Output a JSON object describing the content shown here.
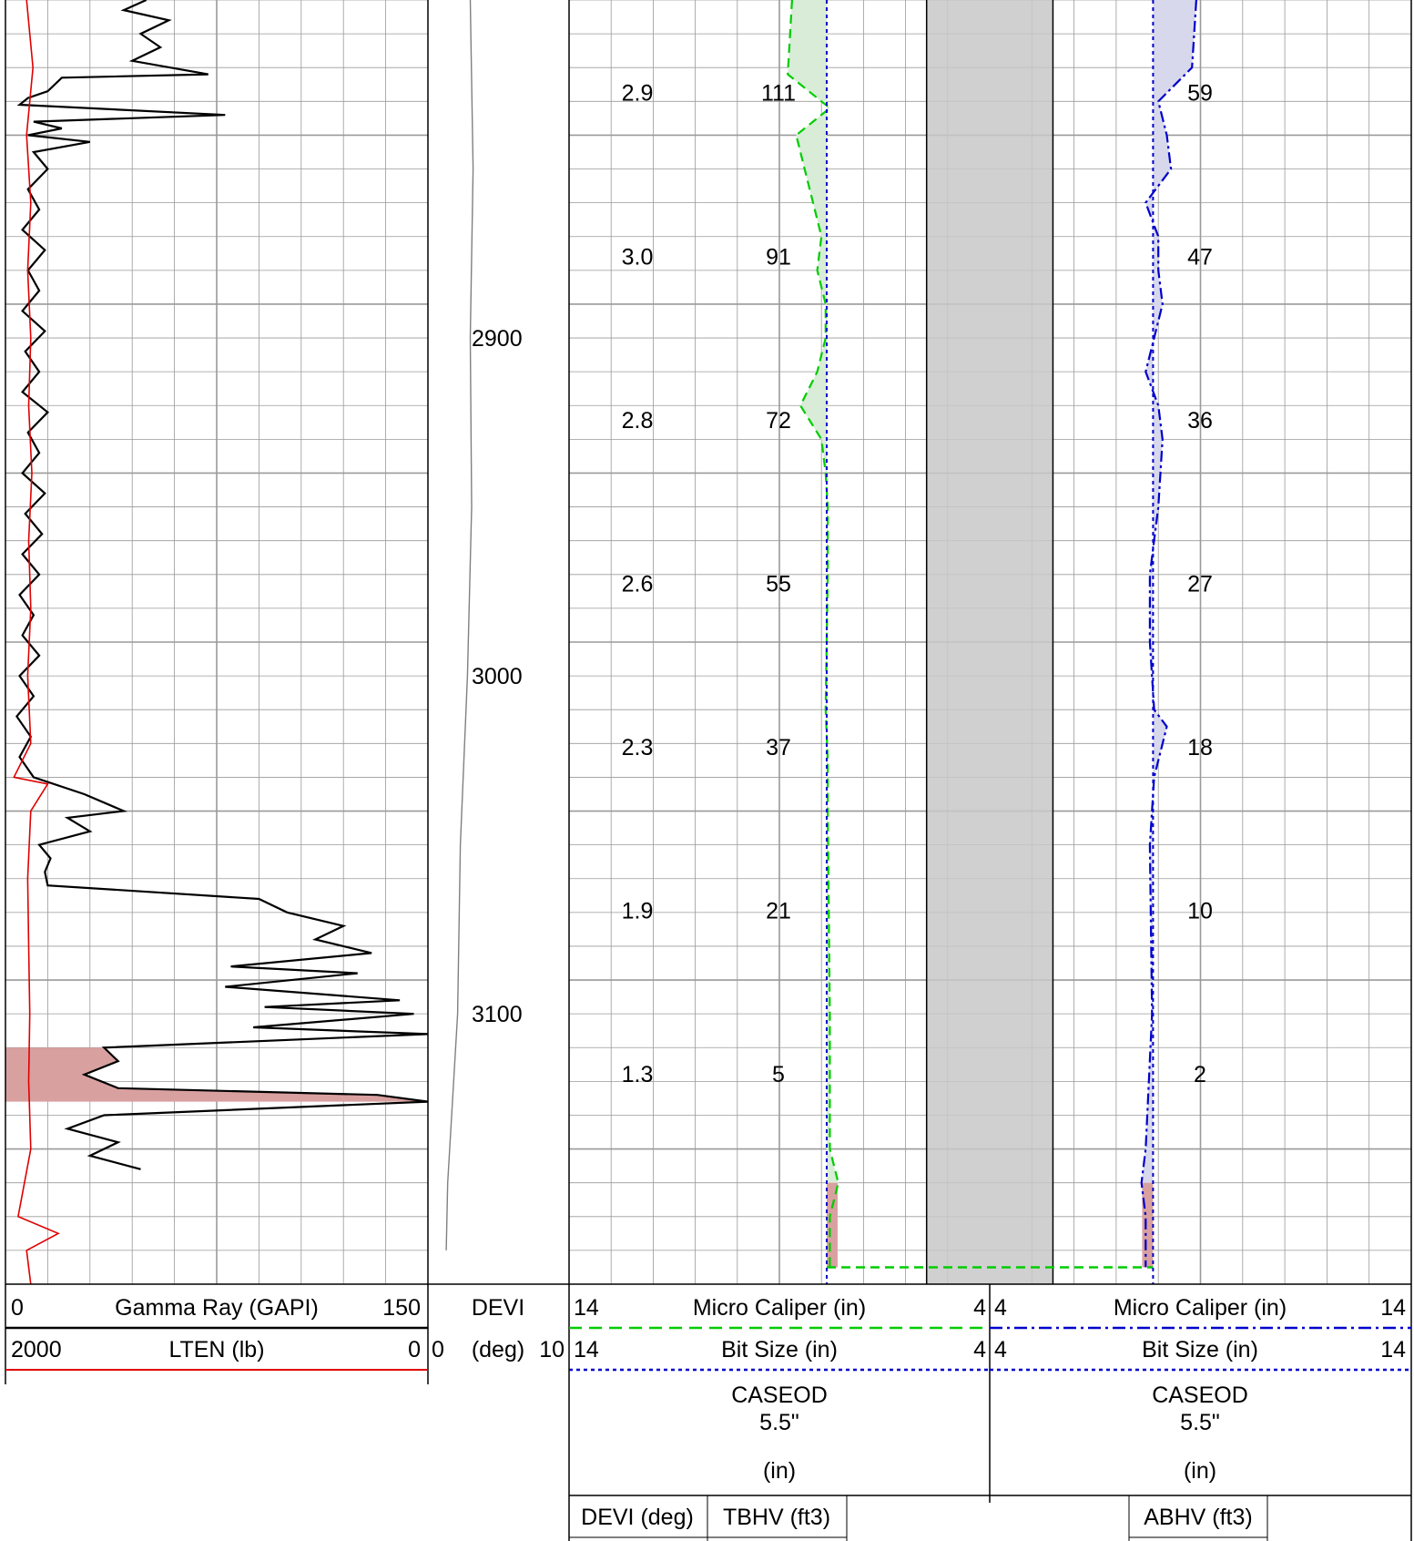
{
  "depth_track": {
    "labels": [
      {
        "depth": 2900,
        "text": "2900"
      },
      {
        "depth": 3000,
        "text": "3000"
      },
      {
        "depth": 3100,
        "text": "3100"
      }
    ]
  },
  "hole_volume_ticks": [
    {
      "devi": "2.9",
      "tbhv": "111",
      "abhv": "59"
    },
    {
      "devi": "3.0",
      "tbhv": "91",
      "abhv": "47"
    },
    {
      "devi": "2.8",
      "tbhv": "72",
      "abhv": "36"
    },
    {
      "devi": "2.6",
      "tbhv": "55",
      "abhv": "27"
    },
    {
      "devi": "2.3",
      "tbhv": "37",
      "abhv": "18"
    },
    {
      "devi": "1.9",
      "tbhv": "21",
      "abhv": "10"
    },
    {
      "devi": "1.3",
      "tbhv": "5",
      "abhv": "2"
    }
  ],
  "headers": {
    "track1": {
      "row1": {
        "left": "0",
        "name": "Gamma Ray (GAPI)",
        "right": "150"
      },
      "row2": {
        "left": "2000",
        "name": "LTEN (lb)",
        "right": "0"
      }
    },
    "track2": {
      "row1": {
        "name": "DEVI"
      },
      "row2": {
        "left": "0",
        "name": "(deg)",
        "right": "10"
      }
    },
    "track3_left": {
      "row1": {
        "left": "14",
        "name": "Micro Caliper (in)",
        "right": "4"
      },
      "row2": {
        "left": "14",
        "name": "Bit Size (in)",
        "right": "4"
      },
      "casing": {
        "name": "CASEOD",
        "value": "5.5\"",
        "unit": "(in)"
      }
    },
    "track3_right": {
      "row1": {
        "left": "4",
        "name": "Micro Caliper (in)",
        "right": "14"
      },
      "row2": {
        "left": "4",
        "name": "Bit Size (in)",
        "right": "14"
      },
      "casing": {
        "name": "CASEOD",
        "value": "5.5\"",
        "unit": "(in)"
      }
    },
    "volume_row": {
      "devi": "DEVI (deg)",
      "tbhv": "TBHV (ft3)",
      "abhv": "ABHV (ft3)"
    }
  },
  "colors": {
    "gamma": "#000000",
    "lten": "#e00000",
    "devi": "#808080",
    "caliper_left": "#00cc00",
    "caliper_right": "#0000cc",
    "bit_size": "#0000cc",
    "hot_fill": "#d9a0a0",
    "caliper_fill_left": "#d8ecd8",
    "caliper_fill_right": "#d8d8ec",
    "casing_fill": "#c8c8c8",
    "grid": "#9a9a9a"
  },
  "chart_data": {
    "type": "line",
    "xlabel": "",
    "ylabel": "",
    "depth_range_label_ticks": [
      2900,
      3000,
      3100
    ],
    "series": [
      {
        "name": "Gamma Ray (GAPI)",
        "scale": [
          0,
          150
        ],
        "points": [
          [
            2800,
            50
          ],
          [
            2803,
            42
          ],
          [
            2806,
            58
          ],
          [
            2810,
            48
          ],
          [
            2814,
            55
          ],
          [
            2818,
            45
          ],
          [
            2822,
            72
          ],
          [
            2823,
            20
          ],
          [
            2827,
            15
          ],
          [
            2829,
            8
          ],
          [
            2831,
            5
          ],
          [
            2834,
            78
          ],
          [
            2836,
            10
          ],
          [
            2838,
            20
          ],
          [
            2840,
            8
          ],
          [
            2842,
            30
          ],
          [
            2845,
            10
          ],
          [
            2850,
            15
          ],
          [
            2856,
            8
          ],
          [
            2862,
            12
          ],
          [
            2868,
            6
          ],
          [
            2874,
            14
          ],
          [
            2880,
            8
          ],
          [
            2886,
            12
          ],
          [
            2892,
            6
          ],
          [
            2898,
            14
          ],
          [
            2904,
            7
          ],
          [
            2910,
            12
          ],
          [
            2916,
            6
          ],
          [
            2922,
            15
          ],
          [
            2928,
            8
          ],
          [
            2934,
            12
          ],
          [
            2940,
            6
          ],
          [
            2946,
            14
          ],
          [
            2952,
            7
          ],
          [
            2958,
            13
          ],
          [
            2964,
            6
          ],
          [
            2970,
            12
          ],
          [
            2976,
            5
          ],
          [
            2982,
            10
          ],
          [
            2988,
            6
          ],
          [
            2994,
            12
          ],
          [
            3000,
            5
          ],
          [
            3006,
            10
          ],
          [
            3012,
            4
          ],
          [
            3018,
            9
          ],
          [
            3024,
            5
          ],
          [
            3030,
            10
          ],
          [
            3035,
            28
          ],
          [
            3040,
            42
          ],
          [
            3042,
            22
          ],
          [
            3046,
            30
          ],
          [
            3050,
            12
          ],
          [
            3054,
            16
          ],
          [
            3058,
            14
          ],
          [
            3062,
            15
          ],
          [
            3066,
            90
          ],
          [
            3070,
            100
          ],
          [
            3074,
            120
          ],
          [
            3078,
            110
          ],
          [
            3082,
            130
          ],
          [
            3086,
            80
          ],
          [
            3088,
            125
          ],
          [
            3092,
            78
          ],
          [
            3096,
            140
          ],
          [
            3098,
            92
          ],
          [
            3100,
            145
          ],
          [
            3104,
            88
          ],
          [
            3106,
            150
          ],
          [
            3110,
            35
          ],
          [
            3114,
            40
          ],
          [
            3118,
            28
          ],
          [
            3122,
            40
          ],
          [
            3124,
            132
          ],
          [
            3126,
            150
          ],
          [
            3130,
            35
          ],
          [
            3134,
            22
          ],
          [
            3138,
            40
          ],
          [
            3142,
            30
          ],
          [
            3146,
            48
          ]
        ]
      },
      {
        "name": "LTEN (lb)",
        "scale": [
          2000,
          0
        ],
        "points": [
          [
            2800,
            1900
          ],
          [
            2820,
            1870
          ],
          [
            2840,
            1900
          ],
          [
            2860,
            1880
          ],
          [
            2880,
            1895
          ],
          [
            2900,
            1880
          ],
          [
            2920,
            1890
          ],
          [
            2940,
            1875
          ],
          [
            2960,
            1890
          ],
          [
            2980,
            1880
          ],
          [
            3000,
            1895
          ],
          [
            3020,
            1880
          ],
          [
            3030,
            1960
          ],
          [
            3032,
            1800
          ],
          [
            3040,
            1880
          ],
          [
            3060,
            1895
          ],
          [
            3080,
            1890
          ],
          [
            3100,
            1885
          ],
          [
            3120,
            1890
          ],
          [
            3140,
            1880
          ],
          [
            3160,
            1940
          ],
          [
            3165,
            1750
          ],
          [
            3170,
            1900
          ],
          [
            3180,
            1880
          ]
        ]
      },
      {
        "name": "DEVI (deg)",
        "scale": [
          0,
          10
        ],
        "points": [
          [
            2800,
            3.0
          ],
          [
            2850,
            3.2
          ],
          [
            2900,
            3.0
          ],
          [
            2950,
            3.1
          ],
          [
            3000,
            2.8
          ],
          [
            3050,
            2.3
          ],
          [
            3100,
            2.1
          ],
          [
            3150,
            1.4
          ],
          [
            3170,
            1.3
          ]
        ]
      },
      {
        "name": "Micro Caliper (in)",
        "track": "left",
        "scale": [
          14,
          4
        ],
        "points": [
          [
            2800,
            8.7
          ],
          [
            2822,
            8.8
          ],
          [
            2832,
            7.8
          ],
          [
            2840,
            8.6
          ],
          [
            2850,
            8.4
          ],
          [
            2860,
            8.2
          ],
          [
            2870,
            8.0
          ],
          [
            2880,
            8.1
          ],
          [
            2890,
            7.9
          ],
          [
            2900,
            7.9
          ],
          [
            2910,
            8.1
          ],
          [
            2920,
            8.5
          ],
          [
            2930,
            8.0
          ],
          [
            2940,
            7.9
          ],
          [
            2950,
            7.85
          ],
          [
            2970,
            7.85
          ],
          [
            3010,
            7.9
          ],
          [
            3025,
            7.85
          ],
          [
            3040,
            7.85
          ],
          [
            3100,
            7.8
          ],
          [
            3140,
            7.8
          ],
          [
            3150,
            7.6
          ],
          [
            3160,
            7.8
          ],
          [
            3175,
            7.8
          ]
        ]
      },
      {
        "name": "Micro Caliper (in)",
        "track": "right",
        "scale": [
          4,
          14
        ],
        "points": [
          [
            2800,
            8.9
          ],
          [
            2820,
            8.8
          ],
          [
            2830,
            8.0
          ],
          [
            2840,
            8.2
          ],
          [
            2850,
            8.3
          ],
          [
            2860,
            7.7
          ],
          [
            2870,
            8.0
          ],
          [
            2880,
            8.0
          ],
          [
            2890,
            8.1
          ],
          [
            2900,
            7.9
          ],
          [
            2910,
            7.7
          ],
          [
            2920,
            8.0
          ],
          [
            2930,
            8.1
          ],
          [
            2950,
            8.0
          ],
          [
            2970,
            7.8
          ],
          [
            2990,
            7.8
          ],
          [
            3010,
            7.9
          ],
          [
            3015,
            8.2
          ],
          [
            3030,
            7.9
          ],
          [
            3050,
            7.8
          ],
          [
            3100,
            7.85
          ],
          [
            3140,
            7.7
          ],
          [
            3150,
            7.6
          ],
          [
            3160,
            7.7
          ],
          [
            3175,
            7.7
          ]
        ]
      },
      {
        "name": "Bit Size (in)",
        "scale": [
          14,
          4
        ],
        "points": [
          [
            2800,
            7.875
          ],
          [
            3180,
            7.875
          ]
        ]
      },
      {
        "name": "CASEOD",
        "scale": [
          14,
          4
        ],
        "points": [
          [
            2800,
            5.5
          ],
          [
            3180,
            5.5
          ]
        ]
      }
    ]
  }
}
